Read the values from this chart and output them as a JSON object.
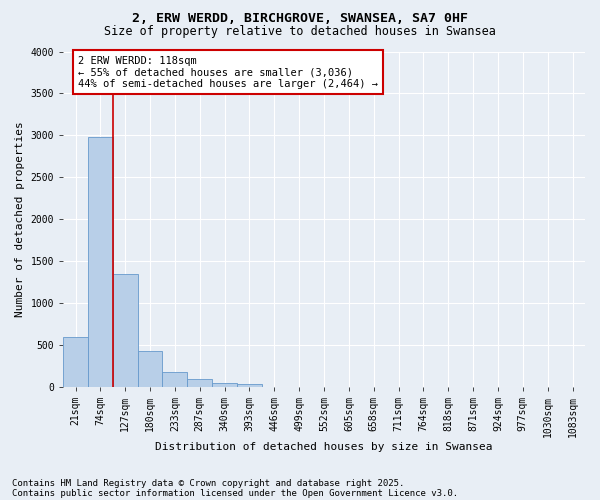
{
  "title": "2, ERW WERDD, BIRCHGROVE, SWANSEA, SA7 0HF",
  "subtitle": "Size of property relative to detached houses in Swansea",
  "xlabel": "Distribution of detached houses by size in Swansea",
  "ylabel": "Number of detached properties",
  "footnote1": "Contains HM Land Registry data © Crown copyright and database right 2025.",
  "footnote2": "Contains public sector information licensed under the Open Government Licence v3.0.",
  "bar_labels": [
    "21sqm",
    "74sqm",
    "127sqm",
    "180sqm",
    "233sqm",
    "287sqm",
    "340sqm",
    "393sqm",
    "446sqm",
    "499sqm",
    "552sqm",
    "605sqm",
    "658sqm",
    "711sqm",
    "764sqm",
    "818sqm",
    "871sqm",
    "924sqm",
    "977sqm",
    "1030sqm",
    "1083sqm"
  ],
  "bar_values": [
    590,
    2980,
    1340,
    430,
    175,
    90,
    45,
    35,
    0,
    0,
    0,
    0,
    0,
    0,
    0,
    0,
    0,
    0,
    0,
    0,
    0
  ],
  "bar_color": "#b8cfe8",
  "bar_edge_color": "#6699cc",
  "ylim": [
    0,
    4000
  ],
  "yticks": [
    0,
    500,
    1000,
    1500,
    2000,
    2500,
    3000,
    3500,
    4000
  ],
  "property_line_x": 1.5,
  "property_line_color": "#cc0000",
  "annotation_text": "2 ERW WERDD: 118sqm\n← 55% of detached houses are smaller (3,036)\n44% of semi-detached houses are larger (2,464) →",
  "annotation_box_color": "#cc0000",
  "background_color": "#e8eef5",
  "plot_background": "#e8eef5",
  "grid_color": "#ffffff",
  "title_fontsize": 9.5,
  "subtitle_fontsize": 8.5,
  "axis_label_fontsize": 8,
  "tick_fontsize": 7,
  "annot_fontsize": 7.5,
  "footnote_fontsize": 6.5
}
